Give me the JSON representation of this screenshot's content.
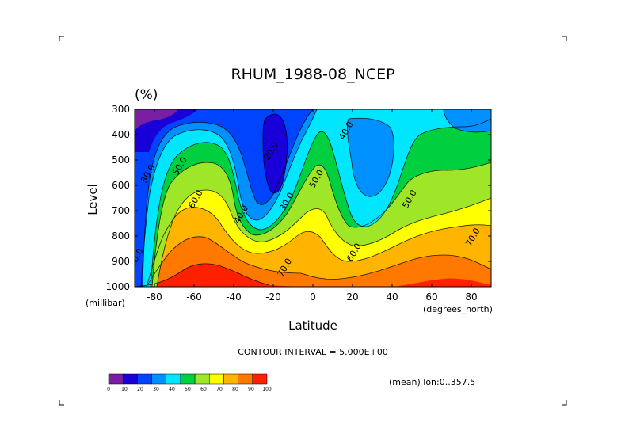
{
  "chart_data": {
    "type": "heatmap",
    "title": "RHUM_1988-08_NCEP",
    "units": "(%)",
    "xlabel": "Latitude",
    "ylabel": "Level",
    "x_unit": "(degrees_north)",
    "y_unit": "(millibar)",
    "xlim": [
      -90,
      90
    ],
    "ylim": [
      1000,
      300
    ],
    "x_ticks": [
      -80,
      -60,
      -40,
      -20,
      0,
      20,
      40,
      60,
      80
    ],
    "y_ticks": [
      300,
      400,
      500,
      600,
      700,
      800,
      900,
      1000
    ],
    "contour_interval_text": "CONTOUR INTERVAL = 5.000E+00",
    "mean_text": "(mean) lon:0..357.5",
    "colorbar": {
      "ticks": [
        "0",
        "10",
        "20",
        "30",
        "40",
        "50",
        "60",
        "70",
        "80",
        "90",
        "100"
      ],
      "colors": [
        "#7a1fa2",
        "#1a00d8",
        "#0044ff",
        "#0090ff",
        "#00e6ff",
        "#00d040",
        "#a0e628",
        "#ffff00",
        "#ffb400",
        "#ff7800",
        "#ff2000"
      ]
    },
    "contour_labels": [
      {
        "text": "30.0",
        "lat": -82,
        "lev": 560
      },
      {
        "text": "40.0",
        "lat": -88,
        "lev": 890
      },
      {
        "text": "50.0",
        "lat": -66,
        "lev": 530
      },
      {
        "text": "60.0",
        "lat": -58,
        "lev": 660
      },
      {
        "text": "40.0",
        "lat": -35,
        "lev": 720
      },
      {
        "text": "20.0",
        "lat": -20,
        "lev": 470
      },
      {
        "text": "30.0",
        "lat": -12,
        "lev": 670
      },
      {
        "text": "50.0",
        "lat": 3,
        "lev": 580
      },
      {
        "text": "70.0",
        "lat": -13,
        "lev": 930
      },
      {
        "text": "40.0",
        "lat": 18,
        "lev": 390
      },
      {
        "text": "50.0",
        "lat": 50,
        "lev": 660
      },
      {
        "text": "60.0",
        "lat": 22,
        "lev": 870
      },
      {
        "text": "70.0",
        "lat": 82,
        "lev": 810
      }
    ]
  }
}
